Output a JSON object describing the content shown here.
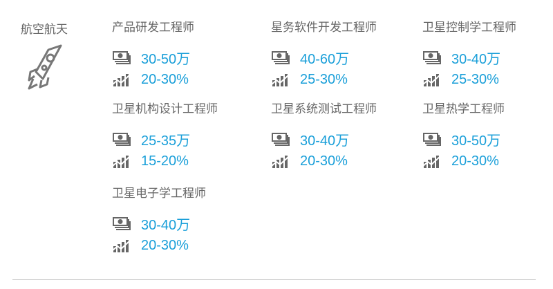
{
  "category": "航空航天",
  "accent_color": "#1a9fd9",
  "jobs": [
    {
      "title": "产品研发工程师",
      "salary": "30-50万",
      "growth": "20-30%"
    },
    {
      "title": "星务软件开发工程师",
      "salary": "40-60万",
      "growth": "25-30%"
    },
    {
      "title": "卫星控制学工程师",
      "salary": "30-40万",
      "growth": "25-30%"
    },
    {
      "title": "卫星机构设计工程师",
      "salary": "25-35万",
      "growth": "15-20%"
    },
    {
      "title": "卫星系统测试工程师",
      "salary": "30-40万",
      "growth": "20-30%"
    },
    {
      "title": "卫星热学工程师",
      "salary": "30-50万",
      "growth": "20-30%"
    },
    {
      "title": "卫星电子学工程师",
      "salary": "30-40万",
      "growth": "20-30%"
    }
  ]
}
